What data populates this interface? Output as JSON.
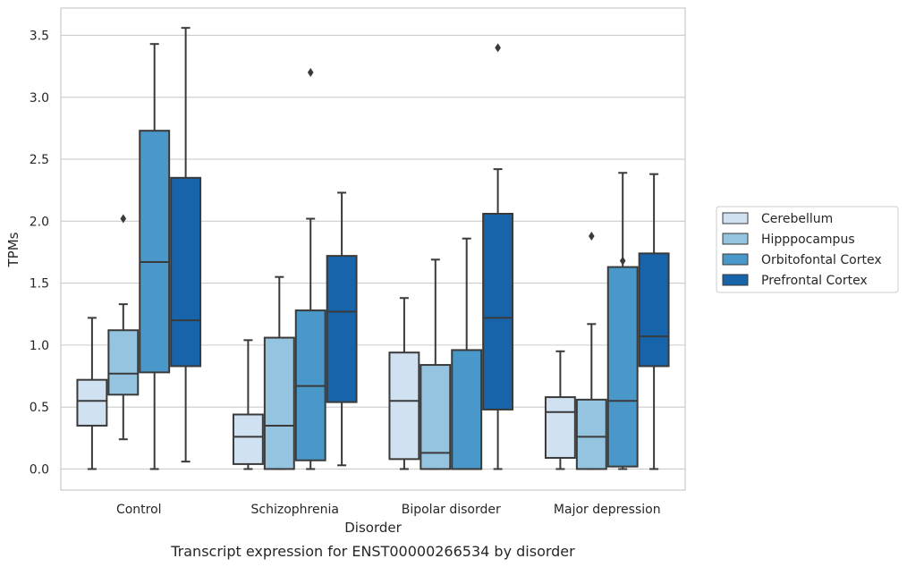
{
  "caption": "Transcript expression for ENST00000266534 by disorder",
  "chart_data": {
    "type": "boxplot",
    "xlabel": "Disorder",
    "ylabel": "TPMs",
    "ylim": [
      -0.17,
      3.72
    ],
    "yticks": [
      "0.0",
      "0.5",
      "1.0",
      "1.5",
      "2.0",
      "2.5",
      "3.0",
      "3.5"
    ],
    "grid": true,
    "legend_position": "right",
    "categories": [
      "Control",
      "Schizophrenia",
      "Bipolar disorder",
      "Major depression"
    ],
    "series": [
      {
        "name": "Cerebellum",
        "color": "#d0e1f2",
        "boxes": [
          {
            "whislo": 0.0,
            "q1": 0.35,
            "med": 0.55,
            "q3": 0.72,
            "whishi": 1.22,
            "fliers": []
          },
          {
            "whislo": 0.0,
            "q1": 0.04,
            "med": 0.26,
            "q3": 0.44,
            "whishi": 1.04,
            "fliers": []
          },
          {
            "whislo": 0.0,
            "q1": 0.08,
            "med": 0.55,
            "q3": 0.94,
            "whishi": 1.38,
            "fliers": []
          },
          {
            "whislo": 0.0,
            "q1": 0.09,
            "med": 0.46,
            "q3": 0.58,
            "whishi": 0.95,
            "fliers": []
          }
        ]
      },
      {
        "name": "Hipppocampus",
        "color": "#94c4df",
        "boxes": [
          {
            "whislo": 0.24,
            "q1": 0.6,
            "med": 0.77,
            "q3": 1.12,
            "whishi": 1.33,
            "fliers": [
              2.02
            ]
          },
          {
            "whislo": 0.0,
            "q1": 0.0,
            "med": 0.35,
            "q3": 1.06,
            "whishi": 1.55,
            "fliers": []
          },
          {
            "whislo": 0.0,
            "q1": 0.0,
            "med": 0.13,
            "q3": 0.84,
            "whishi": 1.69,
            "fliers": []
          },
          {
            "whislo": 0.0,
            "q1": 0.0,
            "med": 0.26,
            "q3": 0.56,
            "whishi": 1.17,
            "fliers": [
              1.88
            ]
          }
        ]
      },
      {
        "name": "Orbitofontal Cortex",
        "color": "#4a98c9",
        "boxes": [
          {
            "whislo": 0.0,
            "q1": 0.78,
            "med": 1.67,
            "q3": 2.73,
            "whishi": 3.43,
            "fliers": []
          },
          {
            "whislo": 0.0,
            "q1": 0.07,
            "med": 0.67,
            "q3": 1.28,
            "whishi": 2.02,
            "fliers": [
              3.2
            ]
          },
          {
            "whislo": 0.0,
            "q1": 0.0,
            "med": 0.0,
            "q3": 0.96,
            "whishi": 1.86,
            "fliers": []
          },
          {
            "whislo": 0.0,
            "q1": 0.02,
            "med": 0.55,
            "q3": 1.63,
            "whishi": 2.39,
            "fliers": [
              1.68
            ]
          }
        ]
      },
      {
        "name": "Prefrontal Cortex",
        "color": "#1764ab",
        "boxes": [
          {
            "whislo": 0.06,
            "q1": 0.83,
            "med": 1.2,
            "q3": 2.35,
            "whishi": 3.56,
            "fliers": []
          },
          {
            "whislo": 0.03,
            "q1": 0.54,
            "med": 1.27,
            "q3": 1.72,
            "whishi": 2.23,
            "fliers": []
          },
          {
            "whislo": 0.0,
            "q1": 0.48,
            "med": 1.22,
            "q3": 2.06,
            "whishi": 2.42,
            "fliers": [
              3.4
            ]
          },
          {
            "whislo": 0.0,
            "q1": 0.83,
            "med": 1.07,
            "q3": 1.74,
            "whishi": 2.38,
            "fliers": []
          }
        ]
      }
    ]
  }
}
